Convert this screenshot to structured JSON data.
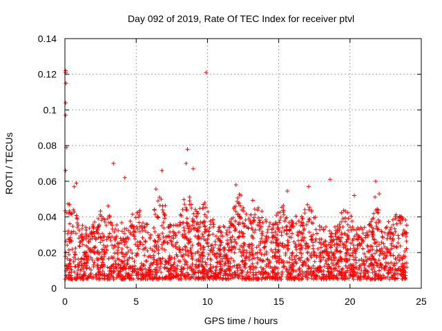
{
  "chart_data": {
    "type": "scatter",
    "title": "Day 092 of 2019, Rate Of TEC Index for receiver ptvl",
    "xlabel": "GPS time / hours",
    "ylabel": "ROTI / TECUs",
    "xlim": [
      0,
      25
    ],
    "ylim": [
      0,
      0.14
    ],
    "xticks": [
      0,
      5,
      10,
      15,
      20,
      25
    ],
    "yticks": [
      0,
      0.02,
      0.04,
      0.06,
      0.08,
      0.1,
      0.12,
      0.14
    ],
    "xtick_labels": [
      "0",
      "5",
      "10",
      "15",
      "20",
      "25"
    ],
    "ytick_labels": [
      "0",
      "0.02",
      "0.04",
      "0.06",
      "0.08",
      "0.1",
      "0.12",
      "0.14"
    ],
    "grid": true,
    "marker": "+",
    "color": "#ff0000",
    "data_range_x": [
      0,
      24
    ],
    "bulk_range_y": [
      0.005,
      0.045
    ],
    "notable_points": [
      {
        "x": 0.05,
        "y": 0.122
      },
      {
        "x": 0.05,
        "y": 0.121
      },
      {
        "x": 0.07,
        "y": 0.115
      },
      {
        "x": 0.05,
        "y": 0.104
      },
      {
        "x": 0.05,
        "y": 0.097
      },
      {
        "x": 0.1,
        "y": 0.079
      },
      {
        "x": 0.05,
        "y": 0.066
      },
      {
        "x": 0.8,
        "y": 0.059
      },
      {
        "x": 3.4,
        "y": 0.07
      },
      {
        "x": 4.2,
        "y": 0.062
      },
      {
        "x": 6.8,
        "y": 0.066
      },
      {
        "x": 8.6,
        "y": 0.078
      },
      {
        "x": 8.5,
        "y": 0.07
      },
      {
        "x": 9.0,
        "y": 0.067
      },
      {
        "x": 9.9,
        "y": 0.121
      },
      {
        "x": 12.0,
        "y": 0.058
      },
      {
        "x": 17.1,
        "y": 0.057
      },
      {
        "x": 18.6,
        "y": 0.061
      },
      {
        "x": 21.8,
        "y": 0.06
      },
      {
        "x": 20.3,
        "y": 0.052
      }
    ]
  }
}
